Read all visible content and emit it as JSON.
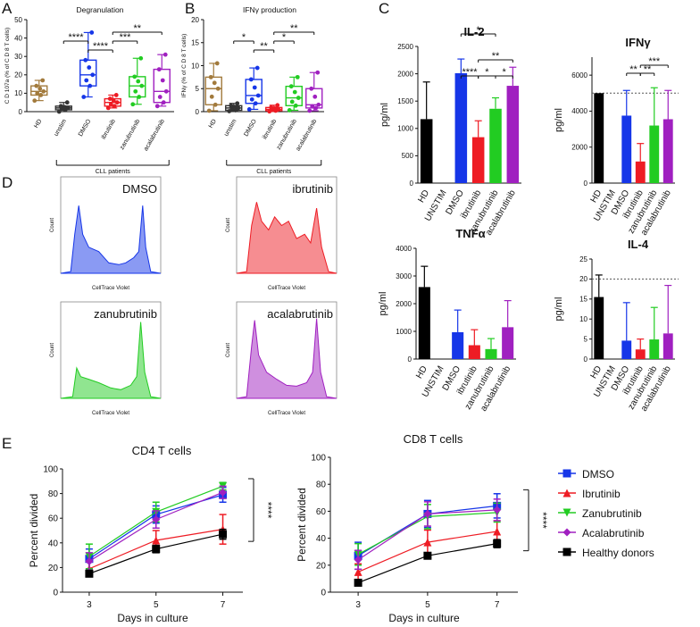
{
  "panels": {
    "A": "A",
    "B": "B",
    "C": "C",
    "D": "D",
    "E": "E"
  },
  "colors": {
    "hd": "#A27A3C",
    "unstim": "#333333",
    "dmso": "#1636E8",
    "ibrutinib": "#EE1C24",
    "zanubrutinib": "#22CC22",
    "acalabrutinib": "#A020C0",
    "black": "#000000"
  },
  "chart_data": [
    {
      "id": "A",
      "type": "box",
      "title": "Degranulation",
      "ylabel": "C D 107a (% of C D 8 T cells)",
      "ylim": [
        0,
        50
      ],
      "yticks": [
        "0",
        "10",
        "20",
        "30",
        "40",
        "50"
      ],
      "categories": [
        "HD",
        "unstim",
        "DMSO",
        "ibrutinib",
        "zanubrutinib",
        "acalabrutinib"
      ],
      "group_label": "CLL patients",
      "boxes": [
        {
          "q1": 9,
          "median": 11,
          "q3": 14,
          "min": 6,
          "max": 17
        },
        {
          "q1": 1,
          "median": 2,
          "q3": 3,
          "min": 0,
          "max": 5
        },
        {
          "q1": 14,
          "median": 20,
          "q3": 28,
          "min": 8,
          "max": 43
        },
        {
          "q1": 3,
          "median": 5,
          "q3": 7,
          "min": 2,
          "max": 9
        },
        {
          "q1": 8,
          "median": 14,
          "q3": 19,
          "min": 4,
          "max": 29
        },
        {
          "q1": 5,
          "median": 11,
          "q3": 23,
          "min": 3,
          "max": 31
        }
      ],
      "significance": [
        {
          "from": 1,
          "to": 2,
          "label": "****"
        },
        {
          "from": 2,
          "to": 3,
          "label": "****"
        },
        {
          "from": 3,
          "to": 4,
          "label": "***"
        },
        {
          "from": 3,
          "to": 5,
          "label": "**"
        }
      ]
    },
    {
      "id": "B",
      "type": "box",
      "title": "IFNγ production",
      "ylabel": "IFNγ (% of C D 8 T cells)",
      "ylim": [
        0,
        20
      ],
      "yticks": [
        "0",
        "5",
        "10",
        "15",
        "20"
      ],
      "categories": [
        "HD",
        "unstim",
        "DMSO",
        "ibrutinib",
        "zanubrutinib",
        "acalabrutinib"
      ],
      "group_label": "CLL patients",
      "boxes": [
        {
          "q1": 1.5,
          "median": 5,
          "q3": 7.5,
          "min": 0.2,
          "max": 10.5
        },
        {
          "q1": 0.3,
          "median": 0.8,
          "q3": 1.3,
          "min": 0.1,
          "max": 1.8
        },
        {
          "q1": 1.8,
          "median": 3.5,
          "q3": 7,
          "min": 0.5,
          "max": 9.5
        },
        {
          "q1": 0.2,
          "median": 0.5,
          "q3": 0.9,
          "min": 0.05,
          "max": 1.4
        },
        {
          "q1": 1.3,
          "median": 3,
          "q3": 5.5,
          "min": 0.3,
          "max": 7.5
        },
        {
          "q1": 0.8,
          "median": 1.5,
          "q3": 5,
          "min": 0.2,
          "max": 8.5
        }
      ],
      "significance": [
        {
          "from": 1,
          "to": 2,
          "label": "*"
        },
        {
          "from": 2,
          "to": 3,
          "label": "**"
        },
        {
          "from": 3,
          "to": 4,
          "label": "*"
        },
        {
          "from": 3,
          "to": 5,
          "label": "**"
        }
      ]
    },
    {
      "id": "C-IL2",
      "type": "bar",
      "title": "IL-2",
      "ylabel": "pg/ml",
      "ylim": [
        0,
        2500
      ],
      "yticks": [
        "0",
        "500",
        "1000",
        "1500",
        "2000",
        "2500"
      ],
      "categories": [
        "HD",
        "UNSTIM",
        "DMSO",
        "ibrutinib",
        "zanubrutinib",
        "acalabrutinib"
      ],
      "values": [
        1170,
        0,
        2010,
        840,
        1360,
        1780
      ],
      "errors": [
        680,
        0,
        260,
        300,
        200,
        340
      ],
      "significance": [
        {
          "from": 2,
          "to": 3,
          "label": "****"
        },
        {
          "from": 3,
          "to": 4,
          "label": "*"
        },
        {
          "from": 4,
          "to": 5,
          "label": "*"
        },
        {
          "from": 2,
          "to": 4,
          "label": "*"
        },
        {
          "from": 3,
          "to": 5,
          "label": "**"
        }
      ]
    },
    {
      "id": "C-IFNG",
      "type": "bar",
      "title": "IFNγ",
      "ylabel": "pg/ml",
      "ylim": [
        0,
        7000
      ],
      "yticks": [
        "0",
        "2000",
        "4000",
        "6000"
      ],
      "categories": [
        "HD",
        "UNSTIM",
        "DMSO",
        "ibrutinib",
        "zanubrutinib",
        "acalabrutinib"
      ],
      "values": [
        5000,
        0,
        3750,
        1200,
        3200,
        3550
      ],
      "errors": [
        0,
        0,
        1400,
        1000,
        2100,
        1600
      ],
      "reference_line": 5000,
      "significance": [
        {
          "from": 2,
          "to": 3,
          "label": "**"
        },
        {
          "from": 3,
          "to": 4,
          "label": "**"
        },
        {
          "from": 3,
          "to": 5,
          "label": "***"
        }
      ]
    },
    {
      "id": "C-TNFA",
      "type": "bar",
      "title": "TNFα",
      "ylabel": "pg/ml",
      "ylim": [
        0,
        4000
      ],
      "yticks": [
        "0",
        "1000",
        "2000",
        "3000",
        "4000"
      ],
      "categories": [
        "HD",
        "UNSTIM",
        "DMSO",
        "ibrutinib",
        "zanubrutinib",
        "acalabrutinib"
      ],
      "values": [
        2600,
        0,
        970,
        500,
        360,
        1150
      ],
      "errors": [
        750,
        0,
        800,
        560,
        380,
        960
      ]
    },
    {
      "id": "C-IL4",
      "type": "bar",
      "title": "IL-4",
      "ylabel": "pg/ml",
      "ylim": [
        0,
        25
      ],
      "yticks": [
        "0",
        "5",
        "10",
        "15",
        "20",
        "25"
      ],
      "categories": [
        "HD",
        "UNSTIM",
        "DMSO",
        "ibrutinib",
        "zanubrutinib",
        "acalabrutinib"
      ],
      "values": [
        15.5,
        0,
        4.6,
        2.4,
        4.9,
        6.4
      ],
      "errors": [
        5.5,
        0,
        9.5,
        2.6,
        8.0,
        12.0
      ],
      "reference_line": 20
    },
    {
      "id": "D",
      "type": "histogram",
      "xlabel": "CellTrace Violet",
      "ylabel": "Count",
      "plots": [
        {
          "label": "DMSO",
          "color_key": "dmso"
        },
        {
          "label": "ibrutinib",
          "color_key": "ibrutinib"
        },
        {
          "label": "zanubrutinib",
          "color_key": "zanubrutinib"
        },
        {
          "label": "acalabrutinib",
          "color_key": "acalabrutinib"
        }
      ]
    },
    {
      "id": "E-CD4",
      "type": "line",
      "title": "CD4 T cells",
      "xlabel": "Days in culture",
      "ylabel": "Percent divided",
      "x": [
        3,
        5,
        7
      ],
      "ylim": [
        0,
        100
      ],
      "yticks": [
        "0",
        "20",
        "40",
        "60",
        "80",
        "100"
      ],
      "xticks": [
        "3",
        "5",
        "7"
      ],
      "series": [
        {
          "name": "DMSO",
          "values": [
            27,
            63,
            79
          ],
          "errors": [
            8,
            7,
            6
          ]
        },
        {
          "name": "Ibrutinib",
          "values": [
            19,
            42,
            51
          ],
          "errors": [
            6,
            8,
            12
          ]
        },
        {
          "name": "Zanubrutinib",
          "values": [
            29,
            65,
            86
          ],
          "errors": [
            10,
            8,
            3
          ]
        },
        {
          "name": "Acalabrutinib",
          "values": [
            25,
            59,
            81
          ],
          "errors": [
            7,
            7,
            5
          ]
        },
        {
          "name": "Healthy donors",
          "values": [
            15,
            35,
            47
          ],
          "errors": [
            2,
            3,
            4
          ]
        }
      ],
      "significance": "****"
    },
    {
      "id": "E-CD8",
      "type": "line",
      "title": "CD8 T cells",
      "xlabel": "Days in culture",
      "ylabel": "Percent divided",
      "x": [
        3,
        5,
        7
      ],
      "ylim": [
        0,
        100
      ],
      "yticks": [
        "0",
        "20",
        "40",
        "60",
        "80",
        "100"
      ],
      "xticks": [
        "3",
        "5",
        "7"
      ],
      "series": [
        {
          "name": "DMSO",
          "values": [
            27,
            58,
            64
          ],
          "errors": [
            10,
            10,
            9
          ]
        },
        {
          "name": "Ibrutinib",
          "values": [
            15,
            37,
            45
          ],
          "errors": [
            6,
            9,
            8
          ]
        },
        {
          "name": "Zanubrutinib",
          "values": [
            28,
            56,
            59
          ],
          "errors": [
            8,
            9,
            7
          ]
        },
        {
          "name": "Acalabrutinib",
          "values": [
            24,
            58,
            61
          ],
          "errors": [
            7,
            9,
            8
          ]
        },
        {
          "name": "Healthy donors",
          "values": [
            7,
            27,
            36
          ],
          "errors": [
            2,
            2,
            3
          ]
        }
      ],
      "significance": "****"
    }
  ],
  "legend": {
    "items": [
      {
        "name": "DMSO",
        "color_key": "dmso",
        "marker": "square"
      },
      {
        "name": "Ibrutinib",
        "color_key": "ibrutinib",
        "marker": "triangle-up"
      },
      {
        "name": "Zanubrutinib",
        "color_key": "zanubrutinib",
        "marker": "triangle-down"
      },
      {
        "name": "Acalabrutinib",
        "color_key": "acalabrutinib",
        "marker": "diamond"
      },
      {
        "name": "Healthy donors",
        "color_key": "black",
        "marker": "square"
      }
    ]
  }
}
